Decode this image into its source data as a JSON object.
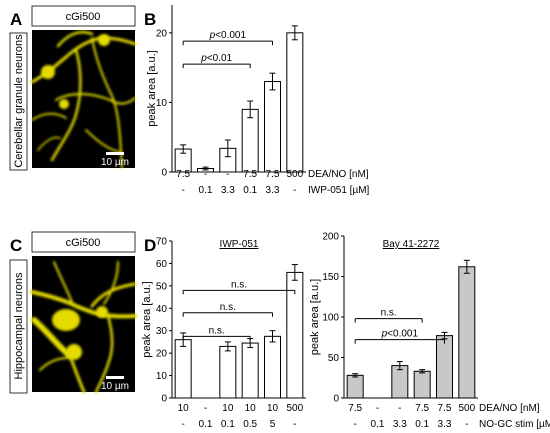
{
  "figure": {
    "panel_labels": [
      "A",
      "B",
      "C",
      "D"
    ],
    "panel_a": {
      "header": "cGi500",
      "side_label": "Cerebellar granule neurons",
      "scale_bar": "10 µm"
    },
    "panel_c": {
      "header": "cGi500",
      "side_label": "Hippocampal neurons",
      "scale_bar": "10 µm"
    },
    "image_color": "#e3dc00"
  },
  "chart_data": [
    {
      "type": "bar",
      "panel": "B",
      "ylabel": "peak area [a.u.]",
      "ylim": [
        0,
        24
      ],
      "yticks": [
        0,
        10,
        20
      ],
      "bar_color": "#ffffff",
      "categories": [
        "7.5 / -",
        "- / 0.1",
        "- / 3.3",
        "7.5 / 0.1",
        "7.5 / 3.3",
        "500 / -"
      ],
      "values": [
        3.3,
        0.5,
        3.4,
        9.0,
        13.0,
        20.0
      ],
      "errors": [
        0.6,
        0.2,
        1.2,
        1.2,
        1.2,
        1.0
      ],
      "condition_rows": [
        {
          "label": "DEA/NO [nM]",
          "values": [
            "7.5",
            "-",
            "-",
            "7.5",
            "7.5",
            "500"
          ]
        },
        {
          "label": "IWP-051 [µM]",
          "values": [
            "-",
            "0.1",
            "3.3",
            "0.1",
            "3.3",
            "-"
          ]
        }
      ],
      "annotations": [
        {
          "text": "p<0.001",
          "from": 0,
          "to": 4,
          "y": 18.8
        },
        {
          "text": "p<0.01",
          "from": 0,
          "to": 3,
          "y": 15.5
        }
      ]
    },
    {
      "type": "bar",
      "panel": "D",
      "title": "IWP-051",
      "ylabel": "peak area [a.u.]",
      "ylim": [
        0,
        70
      ],
      "yticks": [
        0,
        10,
        20,
        30,
        40,
        50,
        60,
        70
      ],
      "bar_color": "#ffffff",
      "categories": [
        "10 / -",
        "- / 0.1",
        "10 / 0.1",
        "10 / 0.5",
        "10 / 5",
        "500 / -"
      ],
      "values": [
        26,
        null,
        23,
        24.5,
        27.5,
        56
      ],
      "errors": [
        3,
        null,
        2,
        2,
        2.5,
        3.5
      ],
      "condition_rows": [
        {
          "label": "",
          "values": [
            "10",
            "-",
            "10",
            "10",
            "10",
            "500"
          ]
        },
        {
          "label": "",
          "values": [
            "-",
            "0.1",
            "0.1",
            "0.5",
            "5",
            "-"
          ]
        }
      ],
      "annotations": [
        {
          "text": "n.s.",
          "from": 0,
          "to": 5,
          "y": 48
        },
        {
          "text": "n.s.",
          "from": 0,
          "to": 4,
          "y": 38
        },
        {
          "text": "n.s.",
          "from": 0,
          "to": 3,
          "y": 27.5
        }
      ]
    },
    {
      "type": "bar",
      "panel": "D",
      "title": "Bay 41-2272",
      "ylabel": "peak area [a.u.]",
      "ylim": [
        0,
        200
      ],
      "yticks": [
        0,
        50,
        100,
        150,
        200
      ],
      "bar_color": "#c8c8c8",
      "categories": [
        "7.5 / -",
        "- / 0.1",
        "- / 3.3",
        "7.5 / 0.1",
        "7.5 / 3.3",
        "500 / -"
      ],
      "values": [
        28,
        null,
        40,
        33,
        77,
        162
      ],
      "errors": [
        2,
        null,
        5,
        2,
        4,
        8
      ],
      "condition_rows": [
        {
          "label": "DEA/NO [nM]",
          "values": [
            "7.5",
            "-",
            "-",
            "7.5",
            "7.5",
            "500"
          ]
        },
        {
          "label": "NO-GC stim [µM]",
          "values": [
            "-",
            "0.1",
            "3.3",
            "0.1",
            "3.3",
            "-"
          ]
        }
      ],
      "annotations": [
        {
          "text": "n.s.",
          "from": 0,
          "to": 3,
          "y": 98
        },
        {
          "text": "p<0.001",
          "from": 0,
          "to": 4,
          "y": 72
        }
      ]
    }
  ]
}
